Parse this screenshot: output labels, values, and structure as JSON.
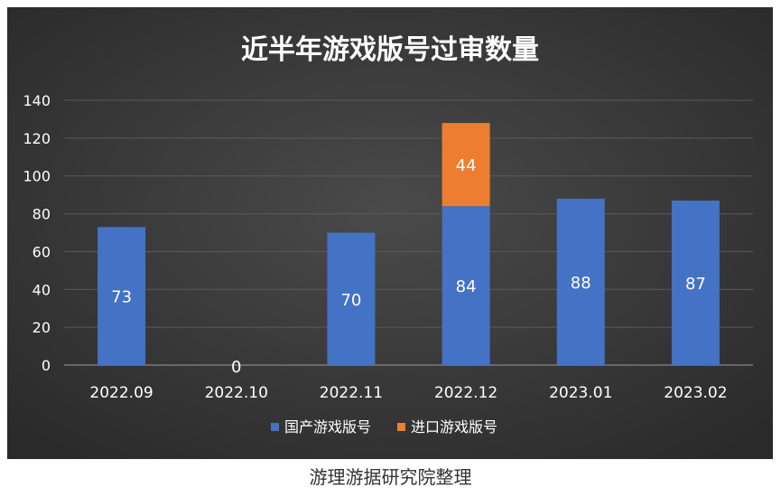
{
  "chart_data": {
    "type": "bar",
    "stacked": true,
    "title": "近半年游戏版号过审数量",
    "categories": [
      "2022.09",
      "2022.10",
      "2022.11",
      "2022.12",
      "2023.01",
      "2023.02"
    ],
    "series": [
      {
        "name": "国产游戏版号",
        "color": "#4472C4",
        "values": [
          73,
          0,
          70,
          84,
          88,
          87
        ]
      },
      {
        "name": "进口游戏版号",
        "color": "#ED7D31",
        "values": [
          0,
          0,
          0,
          44,
          0,
          0
        ]
      }
    ],
    "data_labels": [
      {
        "series": 0,
        "index": 0,
        "text": "73"
      },
      {
        "series": 0,
        "index": 1,
        "text": "0"
      },
      {
        "series": 0,
        "index": 2,
        "text": "70"
      },
      {
        "series": 0,
        "index": 3,
        "text": "84"
      },
      {
        "series": 0,
        "index": 4,
        "text": "88"
      },
      {
        "series": 0,
        "index": 5,
        "text": "87"
      },
      {
        "series": 1,
        "index": 3,
        "text": "44"
      }
    ],
    "ylim": [
      0,
      140
    ],
    "yticks": [
      "0",
      "20",
      "40",
      "60",
      "80",
      "100",
      "120",
      "140"
    ],
    "grid": true,
    "legend_position": "bottom",
    "background": "#3a3a3a"
  },
  "caption": "游理游据研究院整理"
}
